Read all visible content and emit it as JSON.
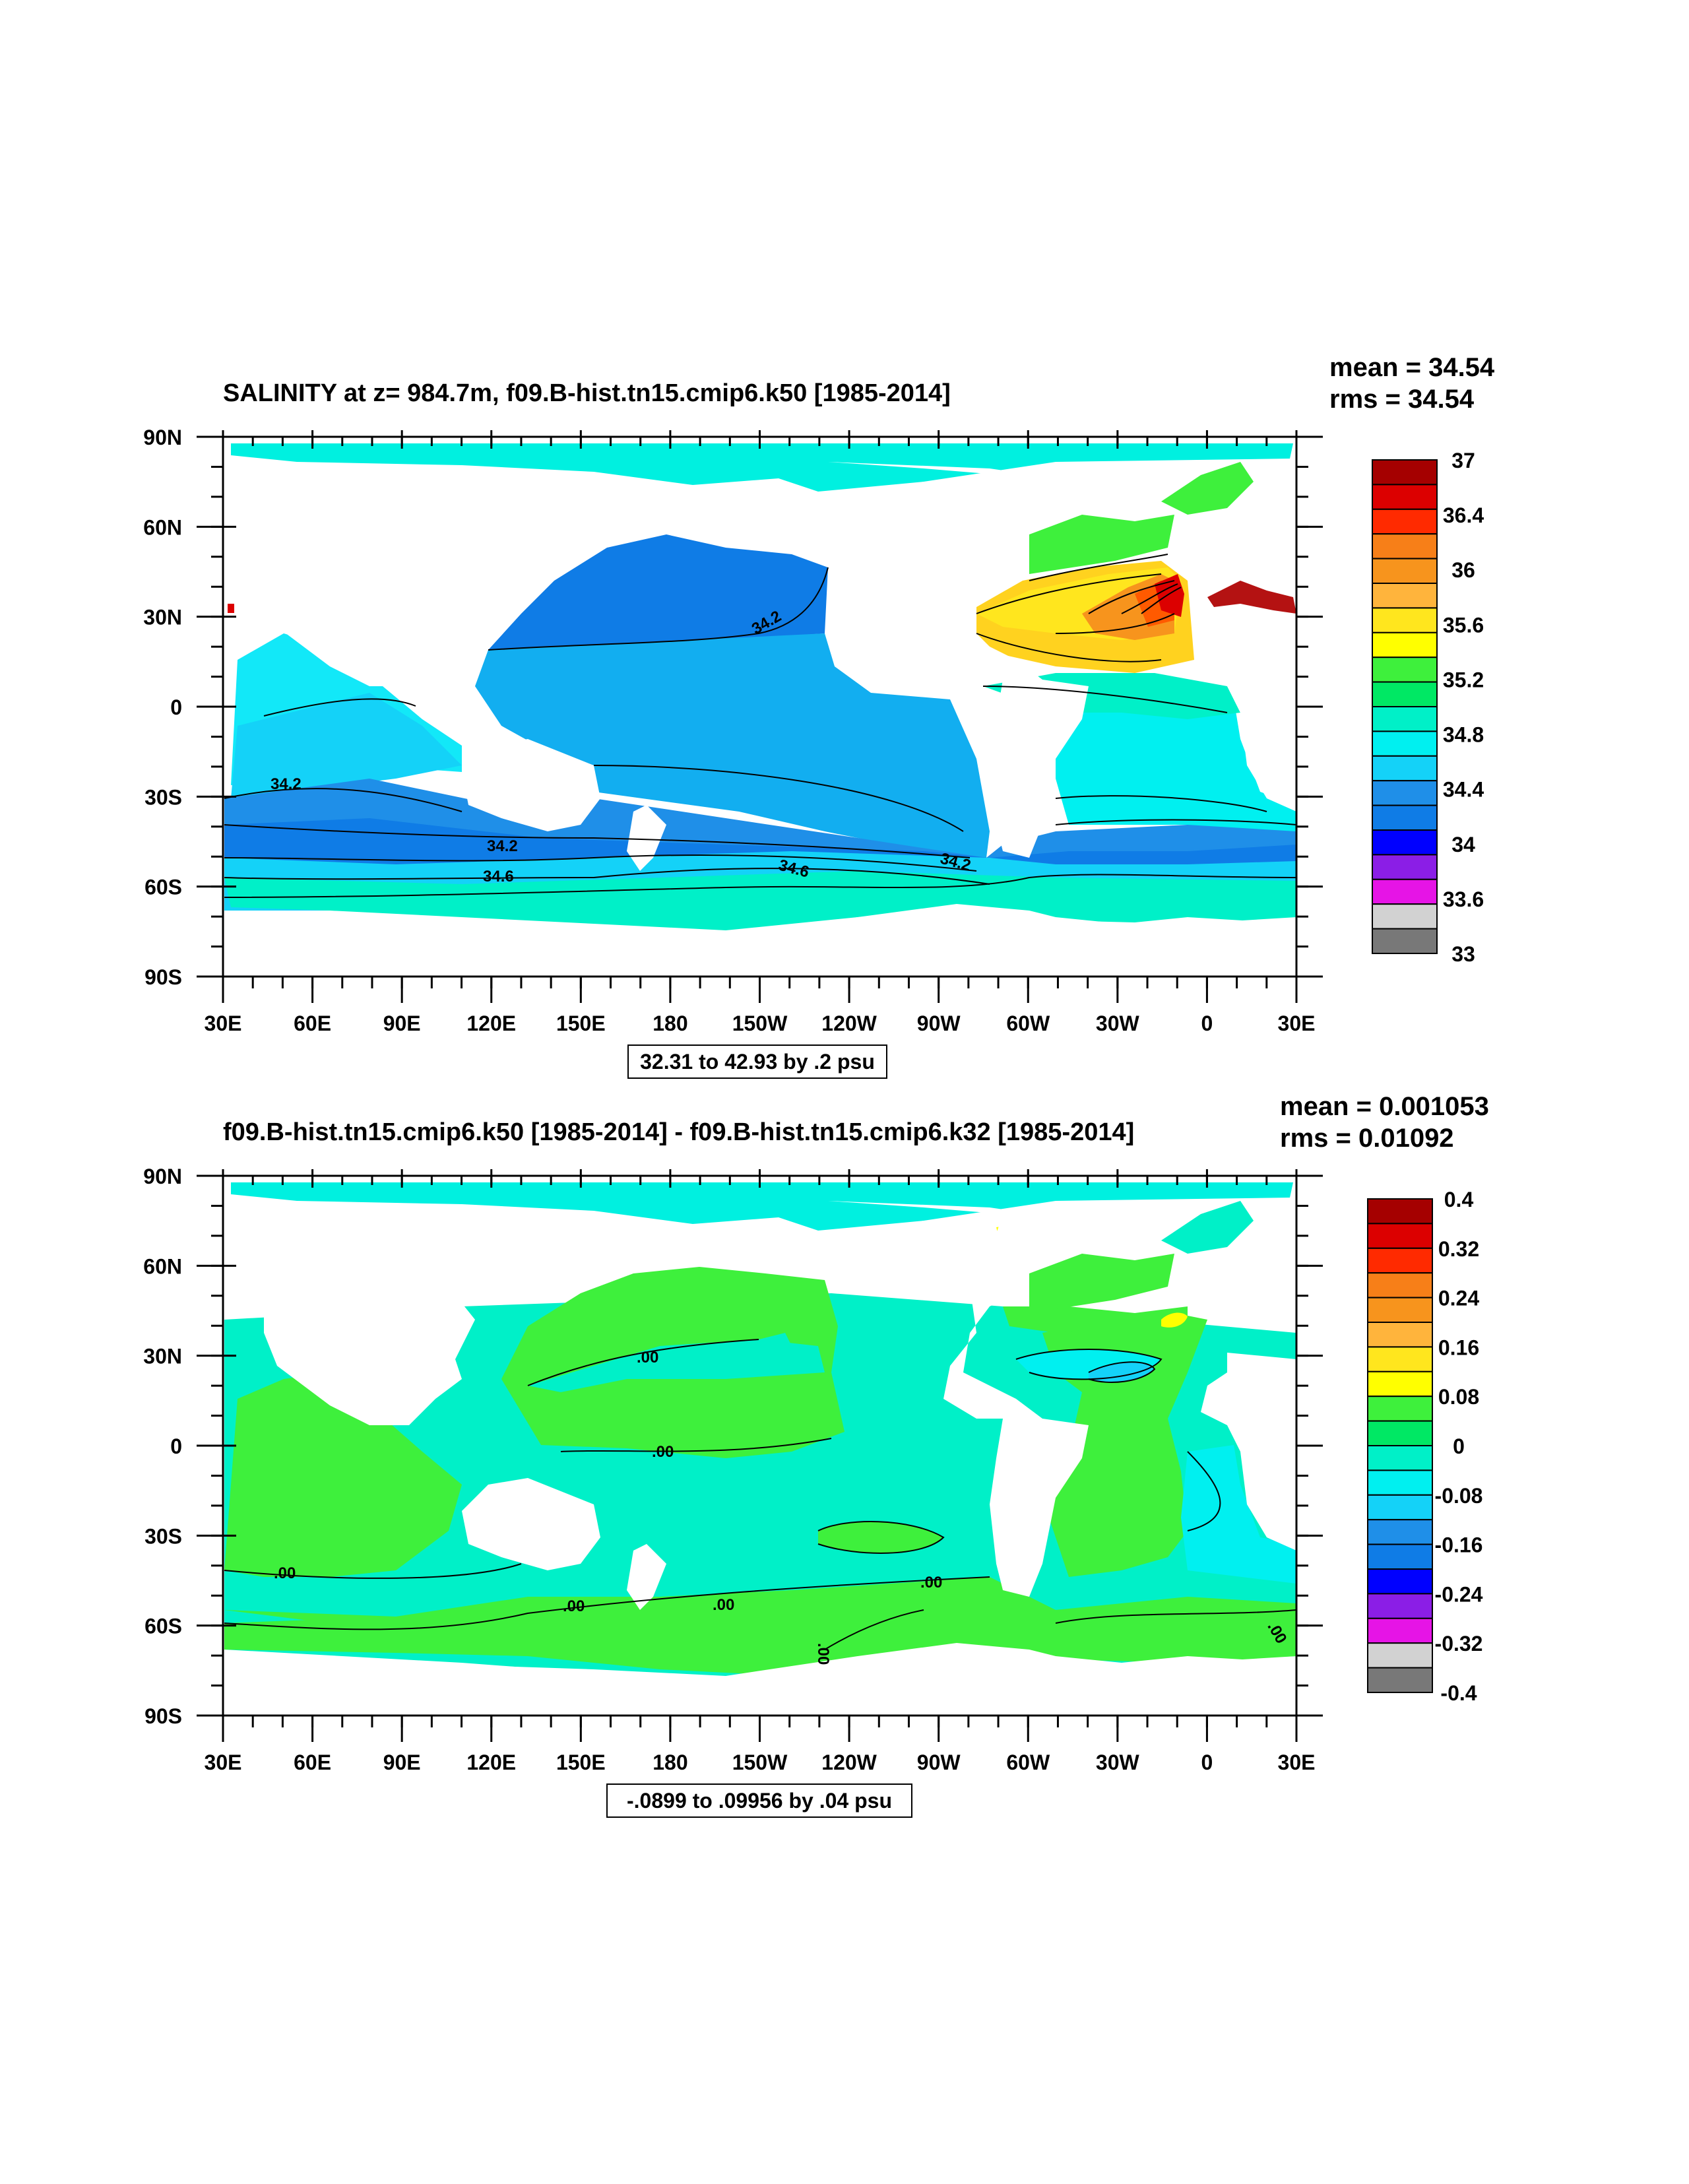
{
  "panels": [
    {
      "id": "top",
      "title": "SALINITY at z= 984.7m, f09.B-hist.tn15.cmip6.k50 [1985-2014]",
      "mean_text": "mean = 34.54",
      "rms_text": "rms = 34.54",
      "range_box": "32.31 to 42.93 by .2 psu",
      "colorbar_labels": [
        "37",
        "36.4",
        "36",
        "35.6",
        "35.2",
        "34.8",
        "34.4",
        "34",
        "33.6",
        "33"
      ],
      "contour_labels": [
        "34.2",
        "34.2",
        "34.2",
        "34.2",
        "34.6",
        "34.6"
      ],
      "field_colors": {
        "ocean_base": "#1f8fe8",
        "pacific": "#12aef0",
        "atlantic_subtrop": "#ffd21f",
        "atlantic_core": "#f7941d",
        "med": "#b41212",
        "south": "#00f0c8",
        "north_pacific": "#0f7ce6"
      }
    },
    {
      "id": "bottom",
      "title": "f09.B-hist.tn15.cmip6.k50 [1985-2014] - f09.B-hist.tn15.cmip6.k32 [1985-2014]",
      "mean_text": "mean = 0.001053",
      "rms_text": "rms = 0.01092",
      "range_box": "-.0899 to .09956 by .04 psu",
      "colorbar_labels": [
        "0.4",
        "0.32",
        "0.24",
        "0.16",
        "0.08",
        "0",
        "-0.08",
        "-0.16",
        "-0.24",
        "-0.32",
        "-0.4"
      ],
      "contour_labels": [
        ".00",
        ".00",
        ".00",
        ".00",
        ".00",
        ".00",
        ".00",
        ".00"
      ],
      "field_colors": {
        "ocean_base": "#00f0c8",
        "green": "#3ef03c",
        "cyan": "#00e8f0"
      }
    }
  ],
  "map": {
    "lat_labels": [
      "90N",
      "60N",
      "30N",
      "0",
      "30S",
      "60S",
      "90S"
    ],
    "lon_labels": [
      "30E",
      "60E",
      "90E",
      "120E",
      "150E",
      "180",
      "150W",
      "120W",
      "90W",
      "60W",
      "30W",
      "0",
      "30E"
    ]
  },
  "colorbar_colors": [
    "#a50000",
    "#dc0000",
    "#ff2a00",
    "#f77f18",
    "#f7941d",
    "#ffb43c",
    "#ffe61e",
    "#ffff00",
    "#3ef03c",
    "#00e864",
    "#00f0c8",
    "#00f0f0",
    "#14d2f8",
    "#1f8fe8",
    "#0f7ce6",
    "#0000ff",
    "#8b1ee6",
    "#e614e6",
    "#d2d2d2",
    "#787878"
  ]
}
